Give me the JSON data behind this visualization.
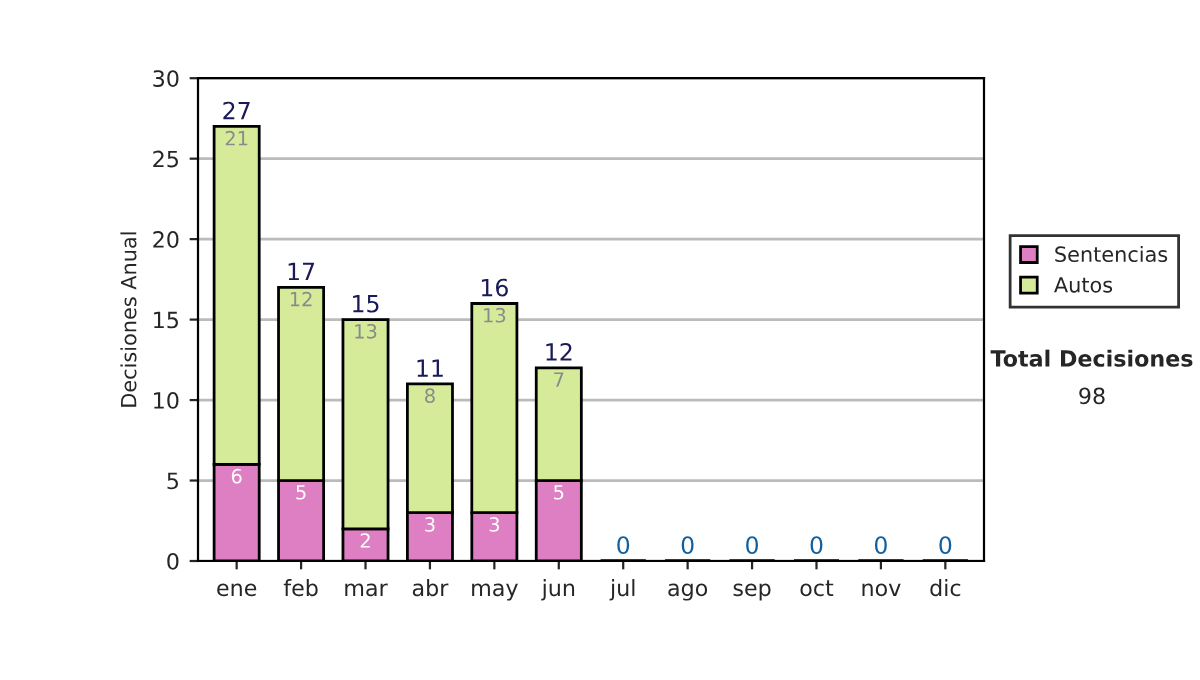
{
  "chart_data": {
    "type": "bar",
    "stacked": true,
    "ylabel": "Decisiones Anual",
    "categories": [
      "ene",
      "feb",
      "mar",
      "abr",
      "may",
      "jun",
      "jul",
      "ago",
      "sep",
      "oct",
      "nov",
      "dic"
    ],
    "series": [
      {
        "name": "Sentencias",
        "color": "#de7fc3",
        "values": [
          6,
          5,
          2,
          3,
          3,
          5,
          0,
          0,
          0,
          0,
          0,
          0
        ],
        "value_labels": [
          "6",
          "5",
          "2",
          "3",
          "3",
          "5",
          null,
          null,
          null,
          null,
          null,
          null
        ]
      },
      {
        "name": "Autos",
        "color": "#d5eb9a",
        "values": [
          21,
          12,
          13,
          8,
          13,
          7,
          0,
          0,
          0,
          0,
          0,
          0
        ],
        "value_labels": [
          "21",
          "12",
          "13",
          "8",
          "13",
          "7",
          null,
          null,
          null,
          null,
          null,
          null
        ]
      }
    ],
    "totals": [
      "27",
      "17",
      "15",
      "11",
      "16",
      "12",
      "0",
      "0",
      "0",
      "0",
      "0",
      "0"
    ],
    "ylim": [
      0,
      30
    ],
    "yticks": [
      0,
      5,
      10,
      15,
      20,
      25,
      30
    ],
    "grid": "y",
    "legend": "right",
    "annotations": [
      "Total Decisiones",
      "98"
    ]
  }
}
